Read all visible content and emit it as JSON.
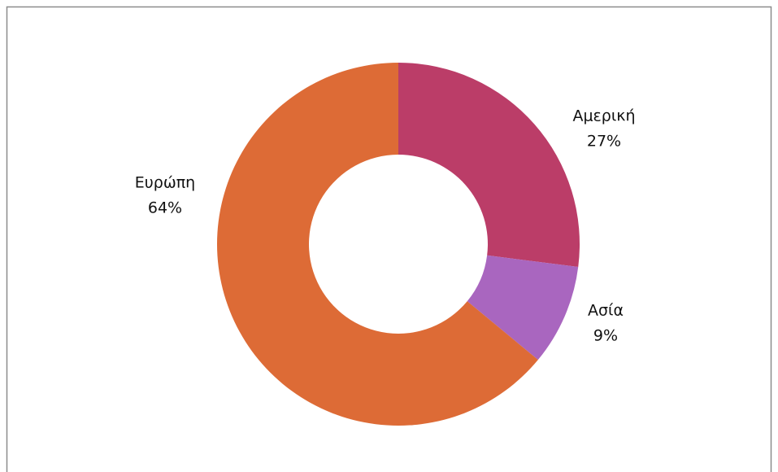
{
  "chart_data": {
    "type": "pie",
    "categories": [
      "Αμερική",
      "Ασία",
      "Ευρώπη"
    ],
    "values": [
      27,
      9,
      64
    ],
    "value_labels": [
      "27%",
      "9%",
      "64%"
    ],
    "colors": [
      "#bb3d68",
      "#a966bf",
      "#dd6b36"
    ]
  }
}
